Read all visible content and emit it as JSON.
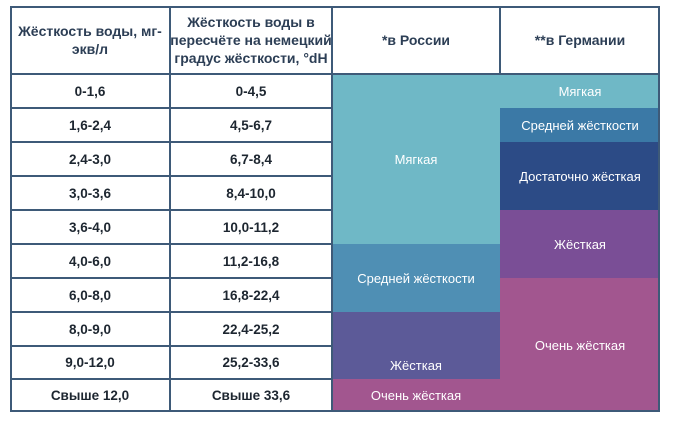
{
  "headers": {
    "col1": "Жёсткость воды, мг-экв/л",
    "col2": "Жёсткость воды в пересчёте на немецкий градус жёсткости, °dH",
    "col3": "*в России",
    "col4": "**в Германии"
  },
  "rows": [
    {
      "mg": "0-1,6",
      "dh": "0-4,5"
    },
    {
      "mg": "1,6-2,4",
      "dh": "4,5-6,7"
    },
    {
      "mg": "2,4-3,0",
      "dh": "6,7-8,4"
    },
    {
      "mg": "3,0-3,6",
      "dh": "8,4-10,0"
    },
    {
      "mg": "3,6-4,0",
      "dh": "10,0-11,2"
    },
    {
      "mg": "4,0-6,0",
      "dh": "11,2-16,8"
    },
    {
      "mg": "6,0-8,0",
      "dh": "16,8-22,4"
    },
    {
      "mg": "8,0-9,0",
      "dh": "22,4-25,2"
    },
    {
      "mg": "9,0-12,0",
      "dh": "25,2-33,6"
    },
    {
      "mg": "Свыше 12,0",
      "dh": "Свыше 33,6"
    }
  ],
  "russia": [
    {
      "label": "Мягкая",
      "color": "#6fb8c6"
    },
    {
      "label": "Средней жёсткости",
      "color": "#4f8fb4"
    },
    {
      "label": "Жёсткая",
      "color": "#5c5a98"
    },
    {
      "label": "Очень жёсткая",
      "color": "#a2568f"
    }
  ],
  "germany": [
    {
      "label": "Мягкая",
      "color": "#6fb8c6"
    },
    {
      "label": "Средней жёсткости",
      "color": "#3b79a6"
    },
    {
      "label": "Достаточно жёсткая",
      "color": "#2c4b86"
    },
    {
      "label": "Жёсткая",
      "color": "#7a4e96"
    },
    {
      "label": "Очень жёсткая",
      "color": "#a2568f"
    }
  ]
}
